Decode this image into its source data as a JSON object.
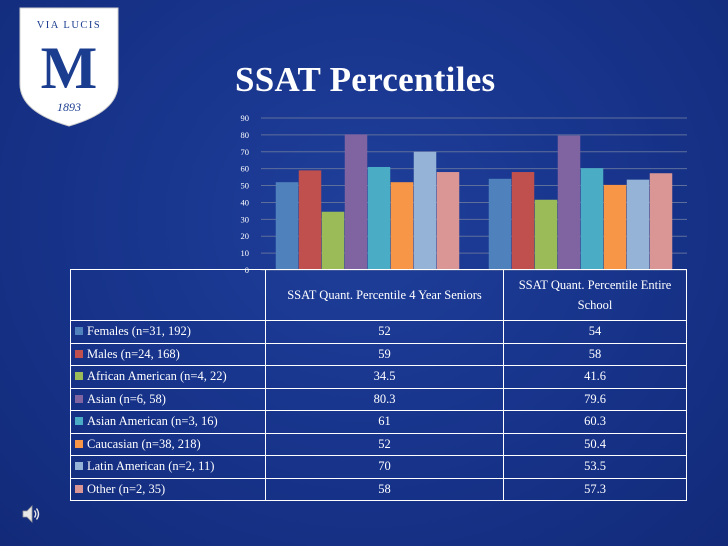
{
  "logo": {
    "motto": "VIA LUCIS",
    "letter": "M",
    "year": "1893"
  },
  "title": "SSAT Percentiles",
  "icons": {
    "sound": "speaker-icon"
  },
  "colors": {
    "background": "#17338a",
    "series": [
      "#4f81bd",
      "#c0504d",
      "#9bbb59",
      "#8064a2",
      "#4bacc6",
      "#f79646",
      "#95b3d7",
      "#d99694"
    ]
  },
  "chart_data": {
    "type": "bar",
    "title": "",
    "xlabel": "",
    "ylabel": "",
    "ylim": [
      0,
      90
    ],
    "yticks": [
      0,
      10,
      20,
      30,
      40,
      50,
      60,
      70,
      80,
      90
    ],
    "grid": true,
    "categories": [
      "SSAT Quant. Percentile 4 Year Seniors",
      "SSAT Quant. Percentile Entire School"
    ],
    "series": [
      {
        "name": "Females (n=31, 192)",
        "values": [
          52,
          54
        ]
      },
      {
        "name": "Males (n=24, 168)",
        "values": [
          59,
          58
        ]
      },
      {
        "name": "African American (n=4, 22)",
        "values": [
          34.5,
          41.6
        ]
      },
      {
        "name": "Asian (n=6, 58)",
        "values": [
          80.3,
          79.6
        ]
      },
      {
        "name": "Asian American (n=3, 16)",
        "values": [
          61,
          60.3
        ]
      },
      {
        "name": "Caucasian (n=38, 218)",
        "values": [
          52,
          50.4
        ]
      },
      {
        "name": "Latin American (n=2, 11)",
        "values": [
          70,
          53.5
        ]
      },
      {
        "name": "Other (n=2, 35)",
        "values": [
          58,
          57.3
        ]
      }
    ]
  }
}
